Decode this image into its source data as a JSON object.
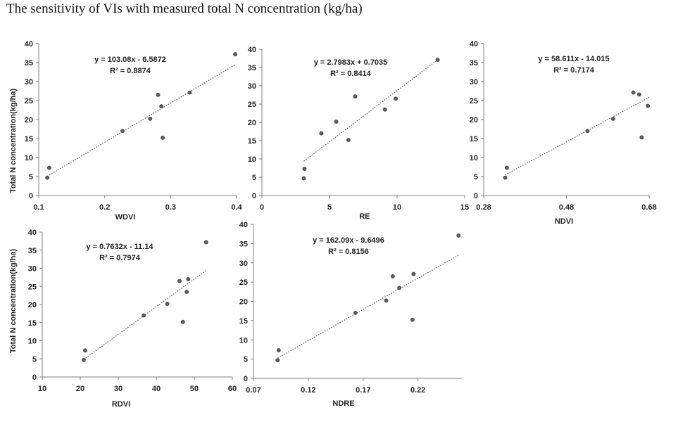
{
  "figure": {
    "title": "The sensitivity of VIs with measured total N concentration (kg/ha)"
  },
  "colors": {
    "point": "#595959",
    "axis": "#7f7f7f",
    "trend": "#595959"
  },
  "chart_data": [
    {
      "id": "wdvi",
      "type": "scatter",
      "xlabel": "WDVI",
      "ylabel": "Total N concentration(kg/ha)",
      "xlim": [
        0.1,
        0.4
      ],
      "ylim": [
        0,
        40
      ],
      "xticks": [
        0.1,
        0.2,
        0.3,
        0.4
      ],
      "xtick_labels": [
        "0.1",
        "0.2",
        "0.3",
        "0.4"
      ],
      "yticks": [
        0,
        5,
        10,
        15,
        20,
        25,
        30,
        35,
        40
      ],
      "ytick_labels": [
        "0",
        "5",
        "10",
        "15",
        "20",
        "25",
        "30",
        "35",
        "40"
      ],
      "points": [
        [
          0.113,
          4.7
        ],
        [
          0.116,
          7.3
        ],
        [
          0.227,
          17.0
        ],
        [
          0.269,
          20.2
        ],
        [
          0.281,
          26.5
        ],
        [
          0.286,
          23.5
        ],
        [
          0.288,
          15.2
        ],
        [
          0.329,
          27.1
        ],
        [
          0.398,
          37.2
        ]
      ],
      "trendline": {
        "slope": 103.08,
        "intercept": -6.5872,
        "x_range": [
          0.113,
          0.398
        ]
      },
      "equation": "y = 103.08x - 6.5872",
      "r2": "R² = 0.8874"
    },
    {
      "id": "re",
      "type": "scatter",
      "xlabel": "RE",
      "ylabel": "",
      "xlim": [
        0,
        15
      ],
      "ylim": [
        0,
        40
      ],
      "xticks": [
        0,
        5,
        10,
        15
      ],
      "xtick_labels": [
        "0",
        "5",
        "10",
        "15"
      ],
      "yticks": [
        0,
        5,
        10,
        15,
        20,
        25,
        30,
        35,
        40
      ],
      "ytick_labels": [
        "0",
        "5",
        "10",
        "15",
        "20",
        "25",
        "30",
        "35",
        "40"
      ],
      "points": [
        [
          3.1,
          4.7
        ],
        [
          3.15,
          7.3
        ],
        [
          4.4,
          17.0
        ],
        [
          5.5,
          20.2
        ],
        [
          6.4,
          15.2
        ],
        [
          6.9,
          27.1
        ],
        [
          9.1,
          23.5
        ],
        [
          9.9,
          26.5
        ],
        [
          13.0,
          37.1
        ]
      ],
      "trendline": {
        "slope": 2.7983,
        "intercept": 0.7035,
        "x_range": [
          3.1,
          13.0
        ]
      },
      "equation": "y = 2.7983x + 0.7035",
      "r2": "R² = 0.8414"
    },
    {
      "id": "ndvi",
      "type": "scatter",
      "xlabel": "NDVI",
      "ylabel": "",
      "xlim": [
        0.28,
        0.68
      ],
      "ylim": [
        0,
        40
      ],
      "xticks": [
        0.28,
        0.48,
        0.68
      ],
      "xtick_labels": [
        "0.28",
        "0.48",
        "0.68"
      ],
      "yticks": [
        0,
        5,
        10,
        15,
        20,
        25,
        30,
        35,
        40
      ],
      "ytick_labels": [
        "0",
        "5",
        "10",
        "15",
        "20",
        "25",
        "30",
        "35",
        "40"
      ],
      "points": [
        [
          0.332,
          4.7
        ],
        [
          0.336,
          7.3
        ],
        [
          0.531,
          17.0
        ],
        [
          0.593,
          20.2
        ],
        [
          0.642,
          27.1
        ],
        [
          0.656,
          26.6
        ],
        [
          0.662,
          15.3
        ],
        [
          0.677,
          23.6
        ]
      ],
      "trendline": {
        "slope": 58.611,
        "intercept": -14.015,
        "x_range": [
          0.332,
          0.68
        ]
      },
      "equation": "y = 58.611x - 14.015",
      "r2": "R² = 0.7174"
    },
    {
      "id": "rdvi",
      "type": "scatter",
      "xlabel": "RDVI",
      "ylabel": "Total N concentration(kg/ha)",
      "xlim": [
        10,
        60
      ],
      "ylim": [
        0,
        40
      ],
      "xticks": [
        10,
        20,
        30,
        40,
        50,
        60
      ],
      "xtick_labels": [
        "10",
        "20",
        "30",
        "40",
        "50",
        "60"
      ],
      "yticks": [
        0,
        5,
        10,
        15,
        20,
        25,
        30,
        35,
        40
      ],
      "ytick_labels": [
        "0",
        "5",
        "10",
        "15",
        "20",
        "25",
        "30",
        "35",
        "40"
      ],
      "points": [
        [
          20.9,
          4.7
        ],
        [
          21.3,
          7.3
        ],
        [
          36.7,
          17.0
        ],
        [
          42.9,
          20.2
        ],
        [
          46.1,
          26.5
        ],
        [
          47.0,
          15.2
        ],
        [
          48.0,
          23.5
        ],
        [
          48.4,
          27.0
        ],
        [
          53.1,
          37.2
        ]
      ],
      "trendline": {
        "slope": 0.7632,
        "intercept": -11.14,
        "x_range": [
          20.9,
          53.1
        ]
      },
      "equation": "y = 0.7632x - 11.14",
      "r2": "R² = 0.7974"
    },
    {
      "id": "ndre",
      "type": "scatter",
      "xlabel": "NDRE",
      "ylabel": "",
      "xlim": [
        0.07,
        0.26
      ],
      "ylim": [
        0,
        40
      ],
      "xticks": [
        0.07,
        0.12,
        0.17,
        0.22
      ],
      "xtick_labels": [
        "0.07",
        "0.12",
        "0.17",
        "0.22"
      ],
      "yticks": [
        0,
        5,
        10,
        15,
        20,
        25,
        30,
        35,
        40
      ],
      "ytick_labels": [
        "0",
        "5",
        "10",
        "15",
        "20",
        "25",
        "30",
        "35",
        "40"
      ],
      "points": [
        [
          0.092,
          4.7
        ],
        [
          0.093,
          7.3
        ],
        [
          0.163,
          17.0
        ],
        [
          0.191,
          20.2
        ],
        [
          0.197,
          26.5
        ],
        [
          0.203,
          23.5
        ],
        [
          0.215,
          15.2
        ],
        [
          0.216,
          27.1
        ],
        [
          0.257,
          37.1
        ]
      ],
      "trendline": {
        "slope": 162.09,
        "intercept": -9.6496,
        "x_range": [
          0.092,
          0.257
        ]
      },
      "equation": "y = 162.09x - 9.6496",
      "r2": "R² = 0.8156"
    }
  ]
}
